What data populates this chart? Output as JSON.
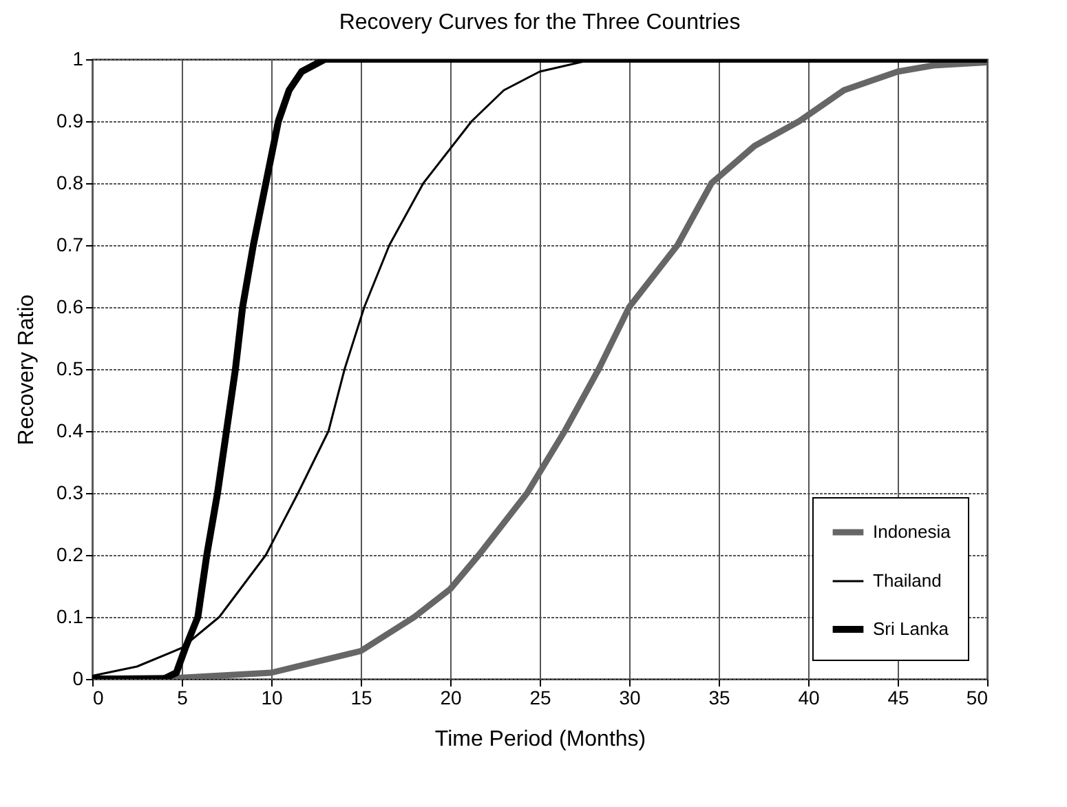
{
  "chart_data": {
    "type": "line",
    "title": "Recovery Curves for the Three Countries",
    "xlabel": "Time Period (Months)",
    "ylabel": "Recovery Ratio",
    "xlim": [
      0,
      50
    ],
    "xticks": [
      0,
      5,
      10,
      15,
      20,
      25,
      30,
      35,
      40,
      45,
      50
    ],
    "ylim": [
      0,
      1
    ],
    "yticks": [
      0,
      0.1,
      0.2,
      0.3,
      0.4,
      0.5,
      0.6,
      0.7,
      0.8,
      0.9,
      1
    ],
    "grid": true,
    "legend": "bottom right",
    "marker": "none",
    "line_style": "solid",
    "series": [
      {
        "name": "Indonesia",
        "color": "#666666",
        "x": [
          0,
          5,
          10,
          15,
          18,
          20,
          21.6,
          24.3,
          26.4,
          28.3,
          30,
          32.7,
          34.6,
          37,
          39.5,
          42,
          45,
          47,
          50
        ],
        "values": [
          0,
          0.002,
          0.01,
          0.045,
          0.1,
          0.145,
          0.2,
          0.3,
          0.4,
          0.5,
          0.6,
          0.7,
          0.8,
          0.86,
          0.9,
          0.95,
          0.98,
          0.99,
          0.995
        ]
      },
      {
        "name": "Thailand",
        "color": "#000000",
        "x": [
          0,
          2.5,
          5,
          7.1,
          9.7,
          11.5,
          13.2,
          14.1,
          15.2,
          16.6,
          18.5,
          21.2,
          23,
          25,
          28,
          50
        ],
        "values": [
          0.005,
          0.02,
          0.05,
          0.1,
          0.2,
          0.3,
          0.4,
          0.5,
          0.6,
          0.7,
          0.8,
          0.9,
          0.95,
          0.98,
          1,
          1
        ]
      },
      {
        "name": "Sri Lanka",
        "color": "#000000",
        "x": [
          0,
          4,
          4.7,
          5.2,
          5.9,
          6.4,
          7,
          7.5,
          8,
          8.4,
          9,
          9.7,
          10.4,
          11,
          11.7,
          13,
          50
        ],
        "values": [
          0,
          0,
          0.01,
          0.05,
          0.1,
          0.2,
          0.3,
          0.4,
          0.5,
          0.6,
          0.7,
          0.8,
          0.9,
          0.95,
          0.98,
          1,
          1
        ]
      }
    ]
  }
}
